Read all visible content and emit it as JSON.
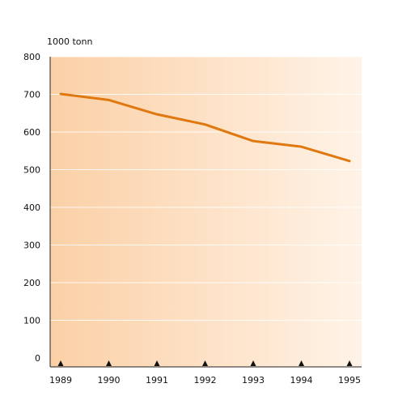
{
  "chart_data": {
    "type": "line",
    "ylabel": "1000 tonn",
    "categories": [
      "1989",
      "1990",
      "1991",
      "1992",
      "1993",
      "1994",
      "1995"
    ],
    "series": [
      {
        "values": [
          701,
          685,
          647,
          620,
          576,
          561,
          523
        ]
      }
    ],
    "yticks": [
      "0",
      "100",
      "200",
      "300",
      "400",
      "500",
      "600",
      "700",
      "800"
    ],
    "ylim": [
      0,
      800
    ],
    "grid": true,
    "line_color": "#e07810",
    "background_gradient": [
      "#fbd0a6",
      "#fff3e7"
    ],
    "marker_color": "#111111"
  }
}
